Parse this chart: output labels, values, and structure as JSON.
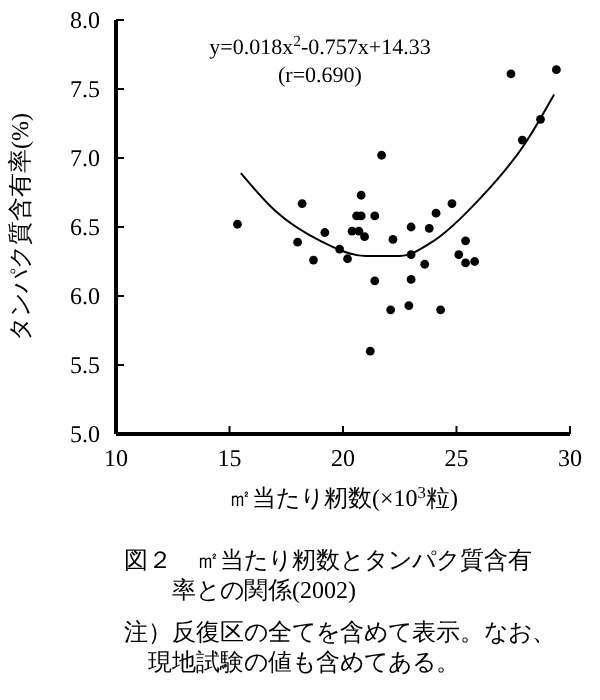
{
  "chart_data": {
    "type": "scatter",
    "xlabel": "㎡当たり籾数(×10$^{3}$粒)",
    "ylabel": "タンパク質含有率(%)",
    "xlim": [
      10,
      30
    ],
    "xticks": [
      10,
      15,
      20,
      25,
      30
    ],
    "ylim": [
      5,
      8
    ],
    "yticks": [
      {
        "value": 5,
        "label": "5.0"
      },
      {
        "value": 5.5,
        "label": "5.5"
      },
      {
        "value": 6,
        "label": "6.0"
      },
      {
        "value": 6.5,
        "label": "6.5"
      },
      {
        "value": 7,
        "label": "7.0"
      },
      {
        "value": 7.5,
        "label": "7.5"
      },
      {
        "value": 8,
        "label": "8.0"
      }
    ],
    "grid": false,
    "series": [
      {
        "marker": "circle",
        "color": "#000000",
        "x": [
          27.4,
          29.4,
          28.7,
          27.9,
          21.7,
          18.2,
          20.8,
          24.8,
          24.1,
          15.35,
          18.0,
          19.2,
          18.7,
          19.85,
          20.2,
          20.4,
          20.6,
          20.8,
          20.7,
          20.95,
          21.4,
          21.4,
          22.1,
          22.2,
          23.0,
          23.0,
          23.0,
          22.9,
          23.6,
          23.8,
          24.3,
          25.1,
          25.4,
          25.4,
          25.8,
          21.2
        ],
        "values": [
          7.61,
          7.64,
          7.28,
          7.13,
          7.02,
          6.67,
          6.73,
          6.67,
          6.6,
          6.52,
          6.39,
          6.46,
          6.26,
          6.34,
          6.27,
          6.47,
          6.58,
          6.58,
          6.47,
          6.43,
          6.58,
          6.11,
          5.9,
          6.41,
          6.5,
          6.3,
          6.12,
          5.93,
          6.23,
          6.49,
          5.9,
          6.3,
          6.4,
          6.24,
          6.25,
          5.6
        ]
      },
      {
        "type": "line",
        "color": "#000000",
        "x": [
          15.5,
          17,
          19,
          21,
          22.5,
          24,
          26,
          28,
          29.3
        ],
        "values": [
          6.89,
          6.62,
          6.4,
          6.29,
          6.29,
          6.4,
          6.7,
          7.1,
          7.46
        ]
      }
    ],
    "annotations": [
      "y=0.018x$^{2}$-0.757x+14.33",
      "(r=0.690)",
      "図２　㎡当たり籾数とタンパク質含有率との関係(2002)",
      "注）反復区の全てを含めて表示。なお、現地試験の値も含めてある。"
    ]
  }
}
